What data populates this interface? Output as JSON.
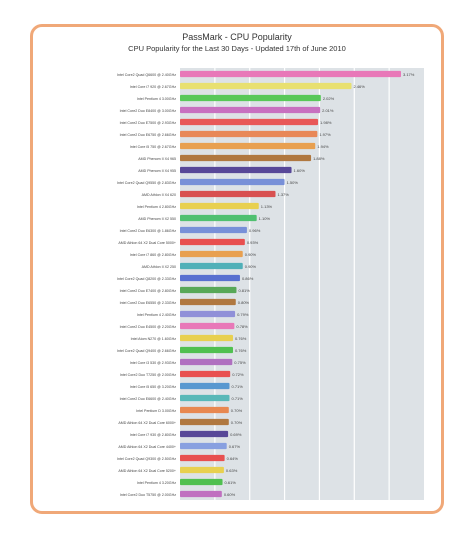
{
  "chart_data": {
    "type": "bar",
    "orientation": "horizontal",
    "title": "PassMark - CPU Popularity",
    "subtitle": "CPU Popularity for the Last 30 Days - Updated 17th of June 2010",
    "xlabel": "",
    "ylabel": "",
    "xlim": [
      0,
      3.5
    ],
    "grid": true,
    "categories": [
      "Intel Core2 Quad Q6600 @ 2.40GHz",
      "Intel Core i7 920 @ 2.67GHz",
      "Intel Pentium 4 3.00GHz",
      "Intel Core2 Duo E8400 @ 3.00GHz",
      "Intel Core2 Duo E7500 @ 2.93GHz",
      "Intel Core2 Duo E6750 @ 2.66GHz",
      "Intel Core i5 750 @ 2.67GHz",
      "AMD Phenom II X4 965",
      "AMD Phenom II X4 955",
      "Intel Core2 Quad Q9550 @ 2.83GHz",
      "AMD Athlon II X4 620",
      "Intel Pentium 4 2.80GHz",
      "AMD Phenom II X2 550",
      "Intel Core2 Duo E6300 @ 1.86GHz",
      "AMD Athlon 64 X2 Dual Core 5000+",
      "Intel Core i7 860 @ 2.80GHz",
      "AMD Athlon II X2 250",
      "Intel Core2 Quad Q8200 @ 2.33GHz",
      "Intel Core2 Duo E7400 @ 2.80GHz",
      "Intel Core2 Duo E6550 @ 2.33GHz",
      "Intel Pentium 4 2.40GHz",
      "Intel Core2 Duo E4500 @ 2.20GHz",
      "Intel Atom N270 @ 1.60GHz",
      "Intel Core2 Quad Q9400 @ 2.66GHz",
      "Intel Core i3 530 @ 2.93GHz",
      "Intel Core2 Duo T7250 @ 2.00GHz",
      "Intel Core i5 650 @ 3.20GHz",
      "Intel Core2 Duo E6600 @ 2.40GHz",
      "Intel Pentium D 3.00GHz",
      "AMD Athlon 64 X2 Dual Core 6000+",
      "Intel Core i7 930 @ 2.80GHz",
      "AMD Athlon 64 X2 Dual Core 4400+",
      "Intel Core2 Quad Q9300 @ 2.50GHz",
      "AMD Athlon 64 X2 Dual Core 5200+",
      "Intel Pentium 4 3.20GHz",
      "Intel Core2 Duo T5750 @ 2.00GHz"
    ],
    "values": [
      3.17,
      2.46,
      2.02,
      2.01,
      1.98,
      1.97,
      1.94,
      1.88,
      1.6,
      1.5,
      1.37,
      1.13,
      1.1,
      0.96,
      0.93,
      0.9,
      0.9,
      0.86,
      0.81,
      0.8,
      0.79,
      0.78,
      0.76,
      0.76,
      0.75,
      0.72,
      0.71,
      0.71,
      0.7,
      0.7,
      0.69,
      0.67,
      0.64,
      0.63,
      0.61,
      0.6
    ],
    "value_labels": [
      "3.17%",
      "2.46%",
      "2.02%",
      "2.01%",
      "1.98%",
      "1.97%",
      "1.94%",
      "1.88%",
      "1.60%",
      "1.50%",
      "1.37%",
      "1.13%",
      "1.10%",
      "0.96%",
      "0.93%",
      "0.90%",
      "0.90%",
      "0.86%",
      "0.81%",
      "0.80%",
      "0.79%",
      "0.78%",
      "0.76%",
      "0.76%",
      "0.75%",
      "0.72%",
      "0.71%",
      "0.71%",
      "0.70%",
      "0.70%",
      "0.69%",
      "0.67%",
      "0.64%",
      "0.63%",
      "0.61%",
      "0.60%"
    ],
    "bar_colors": [
      "#e878b8",
      "#e8e070",
      "#58c858",
      "#c870c0",
      "#e85858",
      "#e88858",
      "#e8a050",
      "#b07840",
      "#584898",
      "#7890d8",
      "#d85050",
      "#e8d050",
      "#50c070",
      "#7890d8",
      "#e85050",
      "#e8a050",
      "#50b0b8",
      "#5870d0",
      "#58a858",
      "#b07840",
      "#9090d8",
      "#e878b8",
      "#e8d050",
      "#50c050",
      "#b070c0",
      "#e85050",
      "#5898d0",
      "#58b8b8",
      "#e88850",
      "#b07840",
      "#584898",
      "#88a0e0",
      "#e85050",
      "#e8d050",
      "#50c050",
      "#c070c0"
    ],
    "plot_background": "#dde2e6",
    "frame_color": "#f0a878"
  }
}
